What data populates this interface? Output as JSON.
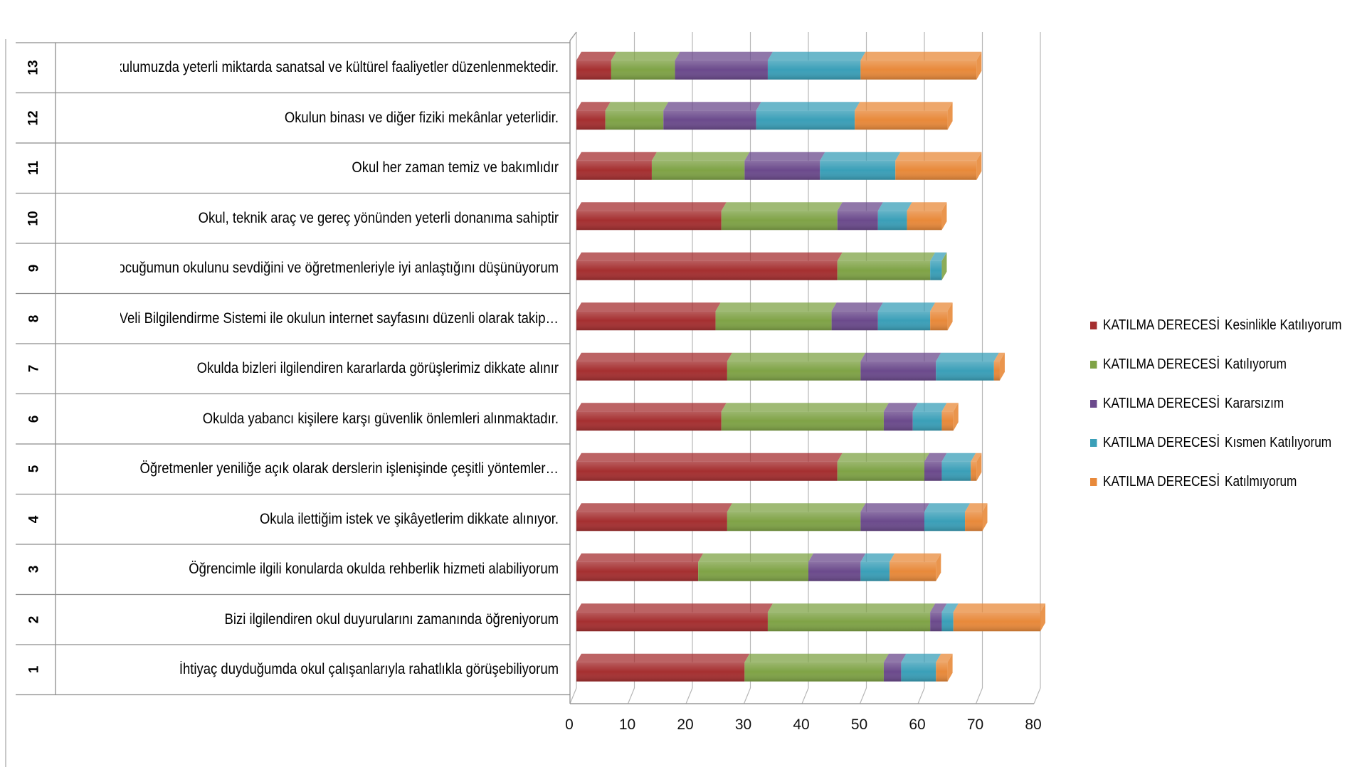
{
  "chart_data": {
    "type": "bar",
    "orientation": "horizontal",
    "stacked": true,
    "categories": [
      {
        "num": "1",
        "label": "İhtiyaç duyduğumda okul çalışanlarıyla rahatlıkla görüşebiliyorum"
      },
      {
        "num": "2",
        "label": "Bizi ilgilendiren okul duyurularını zamanında öğreniyorum"
      },
      {
        "num": "3",
        "label": "Öğrencimle ilgili konularda okulda rehberlik hizmeti alabiliyorum"
      },
      {
        "num": "4",
        "label": "Okula ilettiğim istek ve şikâyetlerim dikkate alınıyor."
      },
      {
        "num": "5",
        "label": "Öğretmenler yeniliğe açık olarak derslerin işlenişinde çeşitli yöntemler…"
      },
      {
        "num": "6",
        "label": "Okulda yabancı kişilere karşı güvenlik önlemleri alınmaktadır."
      },
      {
        "num": "7",
        "label": "Okulda bizleri ilgilendiren kararlarda görüşlerimiz dikkate alınır"
      },
      {
        "num": "8",
        "label": "E-Okul Veli Bilgilendirme Sistemi ile okulun internet sayfasını düzenli olarak takip…"
      },
      {
        "num": "9",
        "label": "Çocuğumun okulunu sevdiğini ve öğretmenleriyle iyi anlaştığını düşünüyorum"
      },
      {
        "num": "10",
        "label": "Okul, teknik araç ve gereç yönünden yeterli donanıma sahiptir"
      },
      {
        "num": "11",
        "label": "Okul her zaman temiz ve bakımlıdır"
      },
      {
        "num": "12",
        "label": "Okulun binası ve diğer fiziki mekânlar yeterlidir."
      },
      {
        "num": "13",
        "label": "Okulumuzda yeterli miktarda sanatsal ve kültürel faaliyetler düzenlenmektedir."
      }
    ],
    "series": [
      {
        "name": "KATILMA DERECESİ Kesinlikle Katılıyorum",
        "prefix": "KATILMA DERECESİ",
        "suffix": "Kesinlikle Katılıyorum",
        "color": "#a52f30",
        "values": [
          29,
          33,
          21,
          26,
          45,
          25,
          26,
          24,
          45,
          25,
          13,
          5,
          6
        ]
      },
      {
        "name": "KATILMA DERECESİ Katılıyorum",
        "prefix": "KATILMA DERECESİ",
        "suffix": "Katılıyorum",
        "color": "#7fa346",
        "values": [
          24,
          28,
          19,
          23,
          15,
          28,
          23,
          20,
          16,
          20,
          16,
          10,
          11
        ]
      },
      {
        "name": "KATILMA DERECESİ Kararsızım",
        "prefix": "KATILMA DERECESİ",
        "suffix": "Kararsızım",
        "color": "#6b4a8c",
        "values": [
          3,
          2,
          9,
          11,
          3,
          5,
          13,
          8,
          0,
          7,
          13,
          16,
          16
        ]
      },
      {
        "name": "KATILMA DERECESİ Kısmen Katılıyorum",
        "prefix": "KATILMA DERECESİ",
        "suffix": "Kısmen Katılıyorum",
        "color": "#3a9fb8",
        "values": [
          6,
          2,
          5,
          7,
          5,
          5,
          10,
          9,
          2,
          5,
          13,
          17,
          16
        ]
      },
      {
        "name": "KATILMA DERECESİ Katılmıyorum",
        "prefix": "KATILMA DERECESİ",
        "suffix": "Katılmıyorum",
        "color": "#e8893a",
        "values": [
          2,
          15,
          8,
          3,
          1,
          2,
          1,
          3,
          0,
          6,
          14,
          16,
          20
        ]
      }
    ],
    "xlim": [
      0,
      80
    ],
    "xticks": [
      "0",
      "10",
      "20",
      "30",
      "40",
      "50",
      "60",
      "70",
      "80"
    ],
    "grid": true,
    "legend_position": "right",
    "title": "",
    "xlabel": "",
    "ylabel": ""
  }
}
